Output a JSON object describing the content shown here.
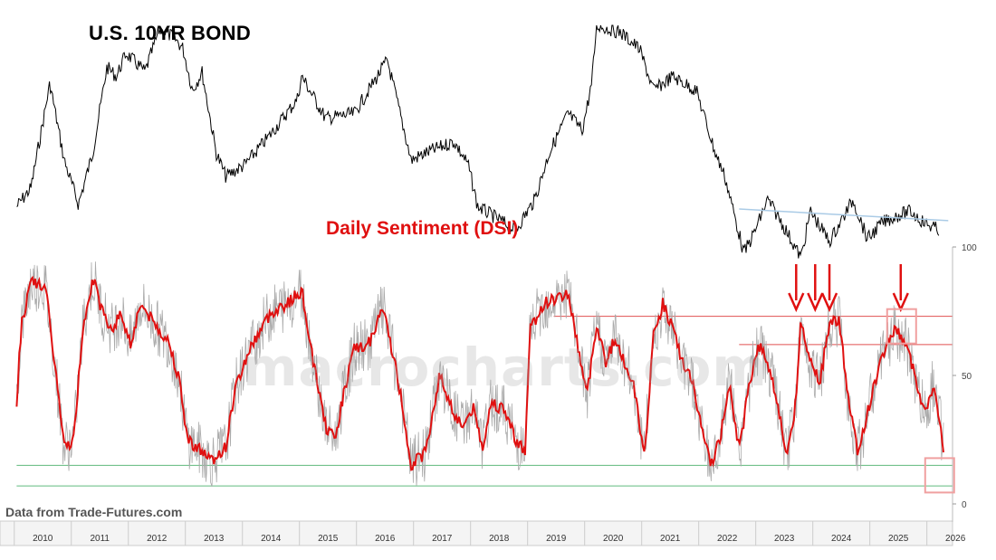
{
  "chart_data": [
    {
      "type": "line",
      "title": "U.S. 10YR BOND",
      "series": [
        {
          "values": [
            {
              "x": "2010-01",
              "y": 0.78
            },
            {
              "x": "2010-04",
              "y": 0.7
            },
            {
              "x": "2010-08",
              "y": 0.25
            },
            {
              "x": "2010-11",
              "y": 0.58
            },
            {
              "x": "2011-02",
              "y": 0.77
            },
            {
              "x": "2011-05",
              "y": 0.55
            },
            {
              "x": "2011-08",
              "y": 0.18
            },
            {
              "x": "2011-10",
              "y": 0.22
            },
            {
              "x": "2011-12",
              "y": 0.12
            },
            {
              "x": "2012-04",
              "y": 0.2
            },
            {
              "x": "2012-07",
              "y": 0.02
            },
            {
              "x": "2012-10",
              "y": 0.05
            },
            {
              "x": "2012-12",
              "y": 0.1
            },
            {
              "x": "2013-02",
              "y": 0.28
            },
            {
              "x": "2013-04",
              "y": 0.2
            },
            {
              "x": "2013-07",
              "y": 0.55
            },
            {
              "x": "2013-09",
              "y": 0.65
            },
            {
              "x": "2014-01",
              "y": 0.6
            },
            {
              "x": "2014-06",
              "y": 0.48
            },
            {
              "x": "2014-12",
              "y": 0.32
            },
            {
              "x": "2015-01",
              "y": 0.22
            },
            {
              "x": "2015-06",
              "y": 0.4
            },
            {
              "x": "2015-12",
              "y": 0.38
            },
            {
              "x": "2016-07",
              "y": 0.15
            },
            {
              "x": "2016-12",
              "y": 0.58
            },
            {
              "x": "2017-03",
              "y": 0.55
            },
            {
              "x": "2017-09",
              "y": 0.5
            },
            {
              "x": "2017-12",
              "y": 0.6
            },
            {
              "x": "2018-02",
              "y": 0.78
            },
            {
              "x": "2018-10",
              "y": 0.88
            },
            {
              "x": "2019-02",
              "y": 0.75
            },
            {
              "x": "2019-05",
              "y": 0.55
            },
            {
              "x": "2019-09",
              "y": 0.38
            },
            {
              "x": "2019-12",
              "y": 0.45
            },
            {
              "x": "2020-02",
              "y": 0.25
            },
            {
              "x": "2020-03",
              "y": 0.0
            },
            {
              "x": "2020-08",
              "y": 0.03
            },
            {
              "x": "2020-12",
              "y": 0.1
            },
            {
              "x": "2021-03",
              "y": 0.28
            },
            {
              "x": "2021-07",
              "y": 0.22
            },
            {
              "x": "2021-12",
              "y": 0.28
            },
            {
              "x": "2022-04",
              "y": 0.55
            },
            {
              "x": "2022-06",
              "y": 0.65
            },
            {
              "x": "2022-10",
              "y": 0.98
            },
            {
              "x": "2022-12",
              "y": 0.9
            },
            {
              "x": "2023-03",
              "y": 0.75
            },
            {
              "x": "2023-06",
              "y": 0.85
            },
            {
              "x": "2023-10",
              "y": 1.0
            },
            {
              "x": "2023-12",
              "y": 0.8
            },
            {
              "x": "2024-04",
              "y": 0.93
            },
            {
              "x": "2024-09",
              "y": 0.75
            },
            {
              "x": "2024-12",
              "y": 0.92
            },
            {
              "x": "2025-03",
              "y": 0.85
            },
            {
              "x": "2025-06",
              "y": 0.82
            },
            {
              "x": "2025-09",
              "y": 0.8
            },
            {
              "x": "2025-12",
              "y": 0.85
            },
            {
              "x": "2026-03",
              "y": 0.88
            }
          ],
          "color": "#000000"
        },
        {
          "name": "resistance-trendline",
          "values": [
            {
              "x": "2022-09",
              "y": 0.79
            },
            {
              "x": "2026-05",
              "y": 0.84
            }
          ],
          "color": "#aacbe6"
        }
      ],
      "y_inverted_note_visible": false
    },
    {
      "type": "line",
      "title": "Daily Sentiment (DSI)",
      "yticks": [
        100,
        50,
        0
      ],
      "ylim": [
        0,
        100
      ],
      "xticks": [
        "2010",
        "2011",
        "2012",
        "2013",
        "2014",
        "2015",
        "2016",
        "2017",
        "2018",
        "2019",
        "2020",
        "2021",
        "2022",
        "2023",
        "2024",
        "2025",
        "2026"
      ],
      "series": [
        {
          "name": "DSI smoothed",
          "color": "#e01010",
          "values": [
            {
              "x": "2010-01",
              "y": 40
            },
            {
              "x": "2010-02",
              "y": 70
            },
            {
              "x": "2010-04",
              "y": 86
            },
            {
              "x": "2010-07",
              "y": 85
            },
            {
              "x": "2010-09",
              "y": 55
            },
            {
              "x": "2010-11",
              "y": 22
            },
            {
              "x": "2011-01",
              "y": 25
            },
            {
              "x": "2011-03",
              "y": 70
            },
            {
              "x": "2011-05",
              "y": 88
            },
            {
              "x": "2011-07",
              "y": 75
            },
            {
              "x": "2011-09",
              "y": 68
            },
            {
              "x": "2011-11",
              "y": 74
            },
            {
              "x": "2012-01",
              "y": 62
            },
            {
              "x": "2012-03",
              "y": 78
            },
            {
              "x": "2012-06",
              "y": 70
            },
            {
              "x": "2012-09",
              "y": 63
            },
            {
              "x": "2012-11",
              "y": 50
            },
            {
              "x": "2013-01",
              "y": 25
            },
            {
              "x": "2013-03",
              "y": 22
            },
            {
              "x": "2013-06",
              "y": 17
            },
            {
              "x": "2013-09",
              "y": 22
            },
            {
              "x": "2013-11",
              "y": 45
            },
            {
              "x": "2014-02",
              "y": 60
            },
            {
              "x": "2014-05",
              "y": 70
            },
            {
              "x": "2014-07",
              "y": 75
            },
            {
              "x": "2014-10",
              "y": 78
            },
            {
              "x": "2015-01",
              "y": 83
            },
            {
              "x": "2015-03",
              "y": 60
            },
            {
              "x": "2015-06",
              "y": 30
            },
            {
              "x": "2015-08",
              "y": 25
            },
            {
              "x": "2015-10",
              "y": 45
            },
            {
              "x": "2015-12",
              "y": 60
            },
            {
              "x": "2016-03",
              "y": 62
            },
            {
              "x": "2016-06",
              "y": 76
            },
            {
              "x": "2016-08",
              "y": 60
            },
            {
              "x": "2016-10",
              "y": 40
            },
            {
              "x": "2016-12",
              "y": 15
            },
            {
              "x": "2017-03",
              "y": 20
            },
            {
              "x": "2017-06",
              "y": 50
            },
            {
              "x": "2017-09",
              "y": 35
            },
            {
              "x": "2017-11",
              "y": 30
            },
            {
              "x": "2018-01",
              "y": 38
            },
            {
              "x": "2018-03",
              "y": 22
            },
            {
              "x": "2018-05",
              "y": 40
            },
            {
              "x": "2018-08",
              "y": 35
            },
            {
              "x": "2018-10",
              "y": 25
            },
            {
              "x": "2018-12",
              "y": 20
            },
            {
              "x": "2019-01",
              "y": 68
            },
            {
              "x": "2019-04",
              "y": 78
            },
            {
              "x": "2019-07",
              "y": 80
            },
            {
              "x": "2019-09",
              "y": 82
            },
            {
              "x": "2019-11",
              "y": 62
            },
            {
              "x": "2020-01",
              "y": 42
            },
            {
              "x": "2020-03",
              "y": 70
            },
            {
              "x": "2020-05",
              "y": 55
            },
            {
              "x": "2020-07",
              "y": 65
            },
            {
              "x": "2020-09",
              "y": 55
            },
            {
              "x": "2020-11",
              "y": 45
            },
            {
              "x": "2021-01",
              "y": 18
            },
            {
              "x": "2021-03",
              "y": 65
            },
            {
              "x": "2021-05",
              "y": 78
            },
            {
              "x": "2021-07",
              "y": 68
            },
            {
              "x": "2021-09",
              "y": 55
            },
            {
              "x": "2021-11",
              "y": 50
            },
            {
              "x": "2022-01",
              "y": 30
            },
            {
              "x": "2022-03",
              "y": 15
            },
            {
              "x": "2022-05",
              "y": 25
            },
            {
              "x": "2022-07",
              "y": 48
            },
            {
              "x": "2022-09",
              "y": 20
            },
            {
              "x": "2022-11",
              "y": 45
            },
            {
              "x": "2023-01",
              "y": 62
            },
            {
              "x": "2023-03",
              "y": 55
            },
            {
              "x": "2023-05",
              "y": 40
            },
            {
              "x": "2023-07",
              "y": 18
            },
            {
              "x": "2023-09",
              "y": 40
            },
            {
              "x": "2023-10",
              "y": 72
            },
            {
              "x": "2023-12",
              "y": 55
            },
            {
              "x": "2024-02",
              "y": 48
            },
            {
              "x": "2024-04",
              "y": 70
            },
            {
              "x": "2024-06",
              "y": 72
            },
            {
              "x": "2024-08",
              "y": 40
            },
            {
              "x": "2024-10",
              "y": 20
            },
            {
              "x": "2024-12",
              "y": 35
            },
            {
              "x": "2025-02",
              "y": 50
            },
            {
              "x": "2025-04",
              "y": 62
            },
            {
              "x": "2025-06",
              "y": 68
            },
            {
              "x": "2025-08",
              "y": 62
            },
            {
              "x": "2025-10",
              "y": 50
            },
            {
              "x": "2025-12",
              "y": 35
            },
            {
              "x": "2026-02",
              "y": 48
            },
            {
              "x": "2026-04",
              "y": 22
            }
          ]
        },
        {
          "name": "DSI raw",
          "color": "#aaaaaa"
        }
      ],
      "reference_lines": [
        {
          "y": 73,
          "color": "#e05050",
          "from": "2019-06",
          "to": "2026-06"
        },
        {
          "y": 62,
          "color": "#e05050",
          "from": "2022-09",
          "to": "2026-06"
        },
        {
          "y": 15,
          "color": "#5fba7d",
          "from": "2010-01",
          "to": "2026-06"
        },
        {
          "y": 7,
          "color": "#5fba7d",
          "from": "2010-01",
          "to": "2026-06"
        }
      ],
      "annotations": [
        {
          "kind": "arrow",
          "x": "2023-09"
        },
        {
          "kind": "arrow",
          "x": "2024-01"
        },
        {
          "kind": "arrow",
          "x": "2024-04"
        },
        {
          "kind": "arrow",
          "x": "2025-07"
        },
        {
          "kind": "box",
          "x": "2025-07",
          "y": 73
        },
        {
          "kind": "box",
          "x": "2026-03",
          "y": 15
        }
      ]
    }
  ],
  "watermark": "macrocharts.com",
  "source": "Data from Trade-Futures.com",
  "colors": {
    "price": "#000000",
    "dsi_smoothed": "#e01010",
    "dsi_raw": "#aaaaaa",
    "green_lines": "#5fba7d",
    "red_lines": "#e05050",
    "trendline": "#aacbe6"
  }
}
